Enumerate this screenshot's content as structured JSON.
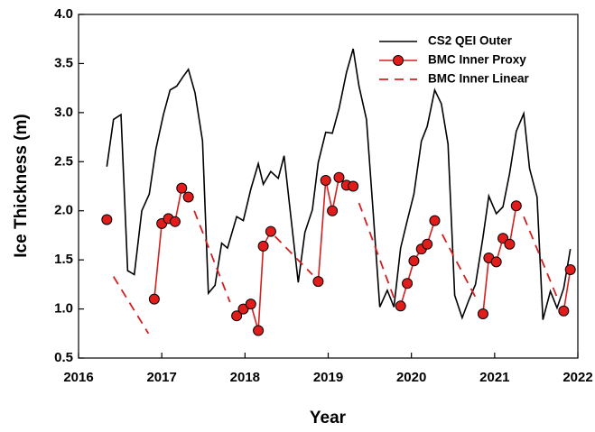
{
  "chart_data": {
    "type": "line",
    "xlabel": "Year",
    "ylabel": "Ice Thickness (m)",
    "xlim": [
      2016,
      2022
    ],
    "xticks": [
      2016,
      2017,
      2018,
      2019,
      2020,
      2021,
      2022
    ],
    "ylim": [
      0.5,
      4.0
    ],
    "yticks": [
      0.5,
      {
        "value": 1.0,
        "label": "1.0"
      },
      1.5,
      {
        "value": 2.0,
        "label": "2.0"
      },
      2.5,
      {
        "value": 3.0,
        "label": "3.0"
      },
      3.5,
      {
        "value": 4.0,
        "label": "4.0"
      }
    ],
    "legend": "upper right",
    "series": [
      {
        "name": "CS2 QEI Outer",
        "color": "#000000",
        "style": "solid",
        "markers": false,
        "x": [
          2016.34,
          2016.42,
          2016.51,
          2016.59,
          2016.67,
          2016.76,
          2016.85,
          2016.93,
          2017.02,
          2017.1,
          2017.18,
          2017.26,
          2017.32,
          2017.4,
          2017.49,
          2017.56,
          2017.64,
          2017.72,
          2017.79,
          2017.9,
          2017.98,
          2018.07,
          2018.16,
          2018.22,
          2018.31,
          2018.4,
          2018.47,
          2018.55,
          2018.64,
          2018.72,
          2018.81,
          2018.88,
          2018.97,
          2019.05,
          2019.13,
          2019.22,
          2019.3,
          2019.37,
          2019.46,
          2019.54,
          2019.62,
          2019.71,
          2019.79,
          2019.87,
          2019.95,
          2020.03,
          2020.12,
          2020.19,
          2020.28,
          2020.36,
          2020.44,
          2020.52,
          2020.61,
          2020.69,
          2020.77,
          2020.86,
          2020.93,
          2021.02,
          2021.1,
          2021.18,
          2021.26,
          2021.35,
          2021.42,
          2021.51,
          2021.58,
          2021.67,
          2021.75,
          2021.83,
          2021.91
        ],
        "values": [
          2.45,
          2.93,
          2.98,
          1.39,
          1.35,
          2.0,
          2.17,
          2.63,
          2.98,
          3.23,
          3.27,
          3.37,
          3.44,
          3.2,
          2.71,
          1.16,
          1.24,
          1.67,
          1.62,
          1.94,
          1.9,
          2.22,
          2.48,
          2.27,
          2.4,
          2.33,
          2.56,
          1.95,
          1.27,
          1.78,
          2.01,
          2.49,
          2.8,
          2.79,
          3.04,
          3.41,
          3.65,
          3.27,
          2.93,
          1.99,
          1.02,
          1.19,
          1.02,
          1.62,
          1.9,
          2.17,
          2.71,
          2.86,
          3.23,
          3.09,
          2.68,
          1.14,
          0.91,
          1.09,
          1.25,
          1.73,
          2.15,
          1.97,
          2.04,
          2.38,
          2.81,
          2.99,
          2.43,
          2.14,
          0.89,
          1.18,
          1.01,
          1.21,
          1.61
        ]
      },
      {
        "name": "BMC Inner Proxy",
        "color": "#d42020",
        "style": "solid",
        "markers": true,
        "x": [
          2016.34,
          null,
          2016.91,
          2017.0,
          2017.08,
          2017.16,
          2017.24,
          2017.32,
          null,
          2017.9,
          2017.98,
          2018.07,
          2018.16,
          2018.22,
          2018.31,
          null,
          2018.88,
          2018.97,
          2019.05,
          2019.13,
          2019.22,
          2019.3,
          null,
          2019.87,
          2019.95,
          2020.03,
          2020.12,
          2020.19,
          2020.28,
          null,
          2020.86,
          2020.93,
          2021.02,
          2021.1,
          2021.18,
          2021.26,
          null,
          2021.83,
          2021.91
        ],
        "values": [
          1.91,
          null,
          1.1,
          1.87,
          1.92,
          1.89,
          2.23,
          2.14,
          null,
          0.93,
          1.0,
          1.05,
          0.78,
          1.64,
          1.79,
          null,
          1.28,
          2.31,
          2.0,
          2.34,
          2.26,
          2.25,
          null,
          1.03,
          1.26,
          1.49,
          1.61,
          1.66,
          1.9,
          null,
          0.95,
          1.52,
          1.48,
          1.72,
          1.66,
          2.05,
          null,
          0.98,
          1.4
        ]
      },
      {
        "name": "BMC Inner Linear",
        "color": "#d42020",
        "style": "dashed",
        "markers": false,
        "x": [
          2016.42,
          2016.84,
          null,
          2017.39,
          2017.82,
          null,
          2018.36,
          2018.81,
          null,
          2019.37,
          2019.8,
          null,
          2020.37,
          2020.77,
          null,
          2021.35,
          2021.75
        ],
        "values": [
          1.33,
          0.75,
          null,
          2.0,
          1.07,
          null,
          1.74,
          1.35,
          null,
          2.08,
          1.09,
          null,
          1.76,
          1.12,
          null,
          1.94,
          1.12
        ]
      }
    ]
  }
}
